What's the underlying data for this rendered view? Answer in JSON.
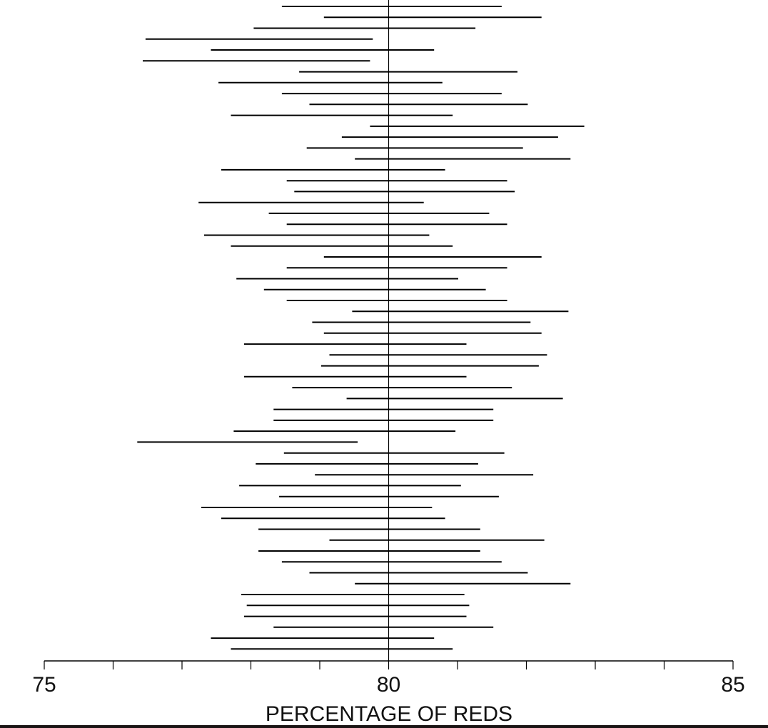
{
  "chart_data": {
    "type": "interval",
    "xlabel": "PERCENTAGE OF REDS",
    "xlim": [
      75,
      85
    ],
    "ticks": [
      75,
      76,
      77,
      78,
      79,
      80,
      81,
      82,
      83,
      84,
      85
    ],
    "tick_labels": [
      {
        "value": 75,
        "label": "75"
      },
      {
        "value": 80,
        "label": "80"
      },
      {
        "value": 85,
        "label": "85"
      }
    ],
    "reference_line": 80,
    "intervals": [
      [
        78.45,
        81.64
      ],
      [
        79.06,
        82.22
      ],
      [
        78.04,
        81.26
      ],
      [
        76.47,
        79.77
      ],
      [
        77.42,
        80.66
      ],
      [
        76.43,
        79.73
      ],
      [
        78.7,
        81.87
      ],
      [
        77.53,
        80.78
      ],
      [
        78.45,
        81.64
      ],
      [
        78.85,
        82.02
      ],
      [
        77.71,
        80.93
      ],
      [
        79.73,
        82.84
      ],
      [
        79.32,
        82.46
      ],
      [
        78.81,
        81.95
      ],
      [
        79.51,
        82.64
      ],
      [
        77.57,
        80.82
      ],
      [
        78.52,
        81.72
      ],
      [
        78.63,
        81.83
      ],
      [
        77.24,
        80.51
      ],
      [
        78.26,
        81.46
      ],
      [
        78.52,
        81.72
      ],
      [
        77.32,
        80.59
      ],
      [
        77.71,
        80.93
      ],
      [
        79.06,
        82.22
      ],
      [
        78.52,
        81.72
      ],
      [
        77.79,
        81.01
      ],
      [
        78.19,
        81.41
      ],
      [
        78.52,
        81.72
      ],
      [
        79.47,
        82.61
      ],
      [
        78.89,
        82.06
      ],
      [
        79.06,
        82.22
      ],
      [
        77.9,
        81.13
      ],
      [
        79.14,
        82.3
      ],
      [
        79.02,
        82.18
      ],
      [
        77.9,
        81.13
      ],
      [
        78.6,
        81.79
      ],
      [
        79.39,
        82.53
      ],
      [
        78.33,
        81.52
      ],
      [
        78.33,
        81.52
      ],
      [
        77.75,
        80.97
      ],
      [
        76.35,
        79.55
      ],
      [
        78.48,
        81.68
      ],
      [
        78.07,
        81.3
      ],
      [
        78.93,
        82.1
      ],
      [
        77.83,
        81.05
      ],
      [
        78.41,
        81.6
      ],
      [
        77.28,
        80.63
      ],
      [
        77.57,
        80.82
      ],
      [
        78.11,
        81.33
      ],
      [
        79.14,
        82.26
      ],
      [
        78.11,
        81.33
      ],
      [
        78.45,
        81.64
      ],
      [
        78.85,
        82.02
      ],
      [
        79.51,
        82.64
      ],
      [
        77.86,
        81.1
      ],
      [
        77.94,
        81.17
      ],
      [
        77.9,
        81.13
      ],
      [
        78.33,
        81.52
      ],
      [
        77.42,
        80.66
      ],
      [
        77.71,
        80.93
      ]
    ]
  }
}
